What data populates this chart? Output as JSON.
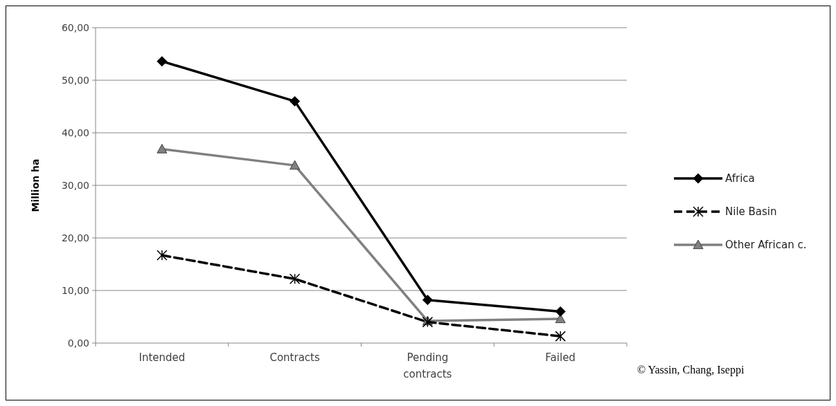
{
  "chart_data": {
    "type": "line",
    "ylabel": "Million ha",
    "categories": [
      "Intended",
      "Contracts",
      "Pending contracts",
      "Failed"
    ],
    "series": [
      {
        "name": "Africa",
        "color": "#000000",
        "values": [
          53.6,
          46.0,
          8.2,
          6.0
        ],
        "marker": "diamond",
        "line_style": "solid"
      },
      {
        "name": "Nile Basin",
        "color": "#000000",
        "values": [
          16.7,
          12.2,
          4.0,
          1.3
        ],
        "marker": "cross",
        "line_style": "dashed"
      },
      {
        "name": "Other African c.",
        "color": "#808080",
        "values": [
          36.9,
          33.8,
          4.2,
          4.6
        ],
        "marker": "triangle",
        "line_style": "solid"
      }
    ],
    "ylim": [
      0,
      60
    ],
    "yticks": [
      {
        "value": 0,
        "label": "0,00"
      },
      {
        "value": 10,
        "label": "10,00"
      },
      {
        "value": 20,
        "label": "20,00"
      },
      {
        "value": 30,
        "label": "30,00"
      },
      {
        "value": 40,
        "label": "40,00"
      },
      {
        "value": 50,
        "label": "50,00"
      },
      {
        "value": 60,
        "label": "60,00"
      }
    ],
    "grid": "y",
    "legend": "right",
    "annotations": [
      "© Yassin, Chang, Iseppi"
    ]
  }
}
